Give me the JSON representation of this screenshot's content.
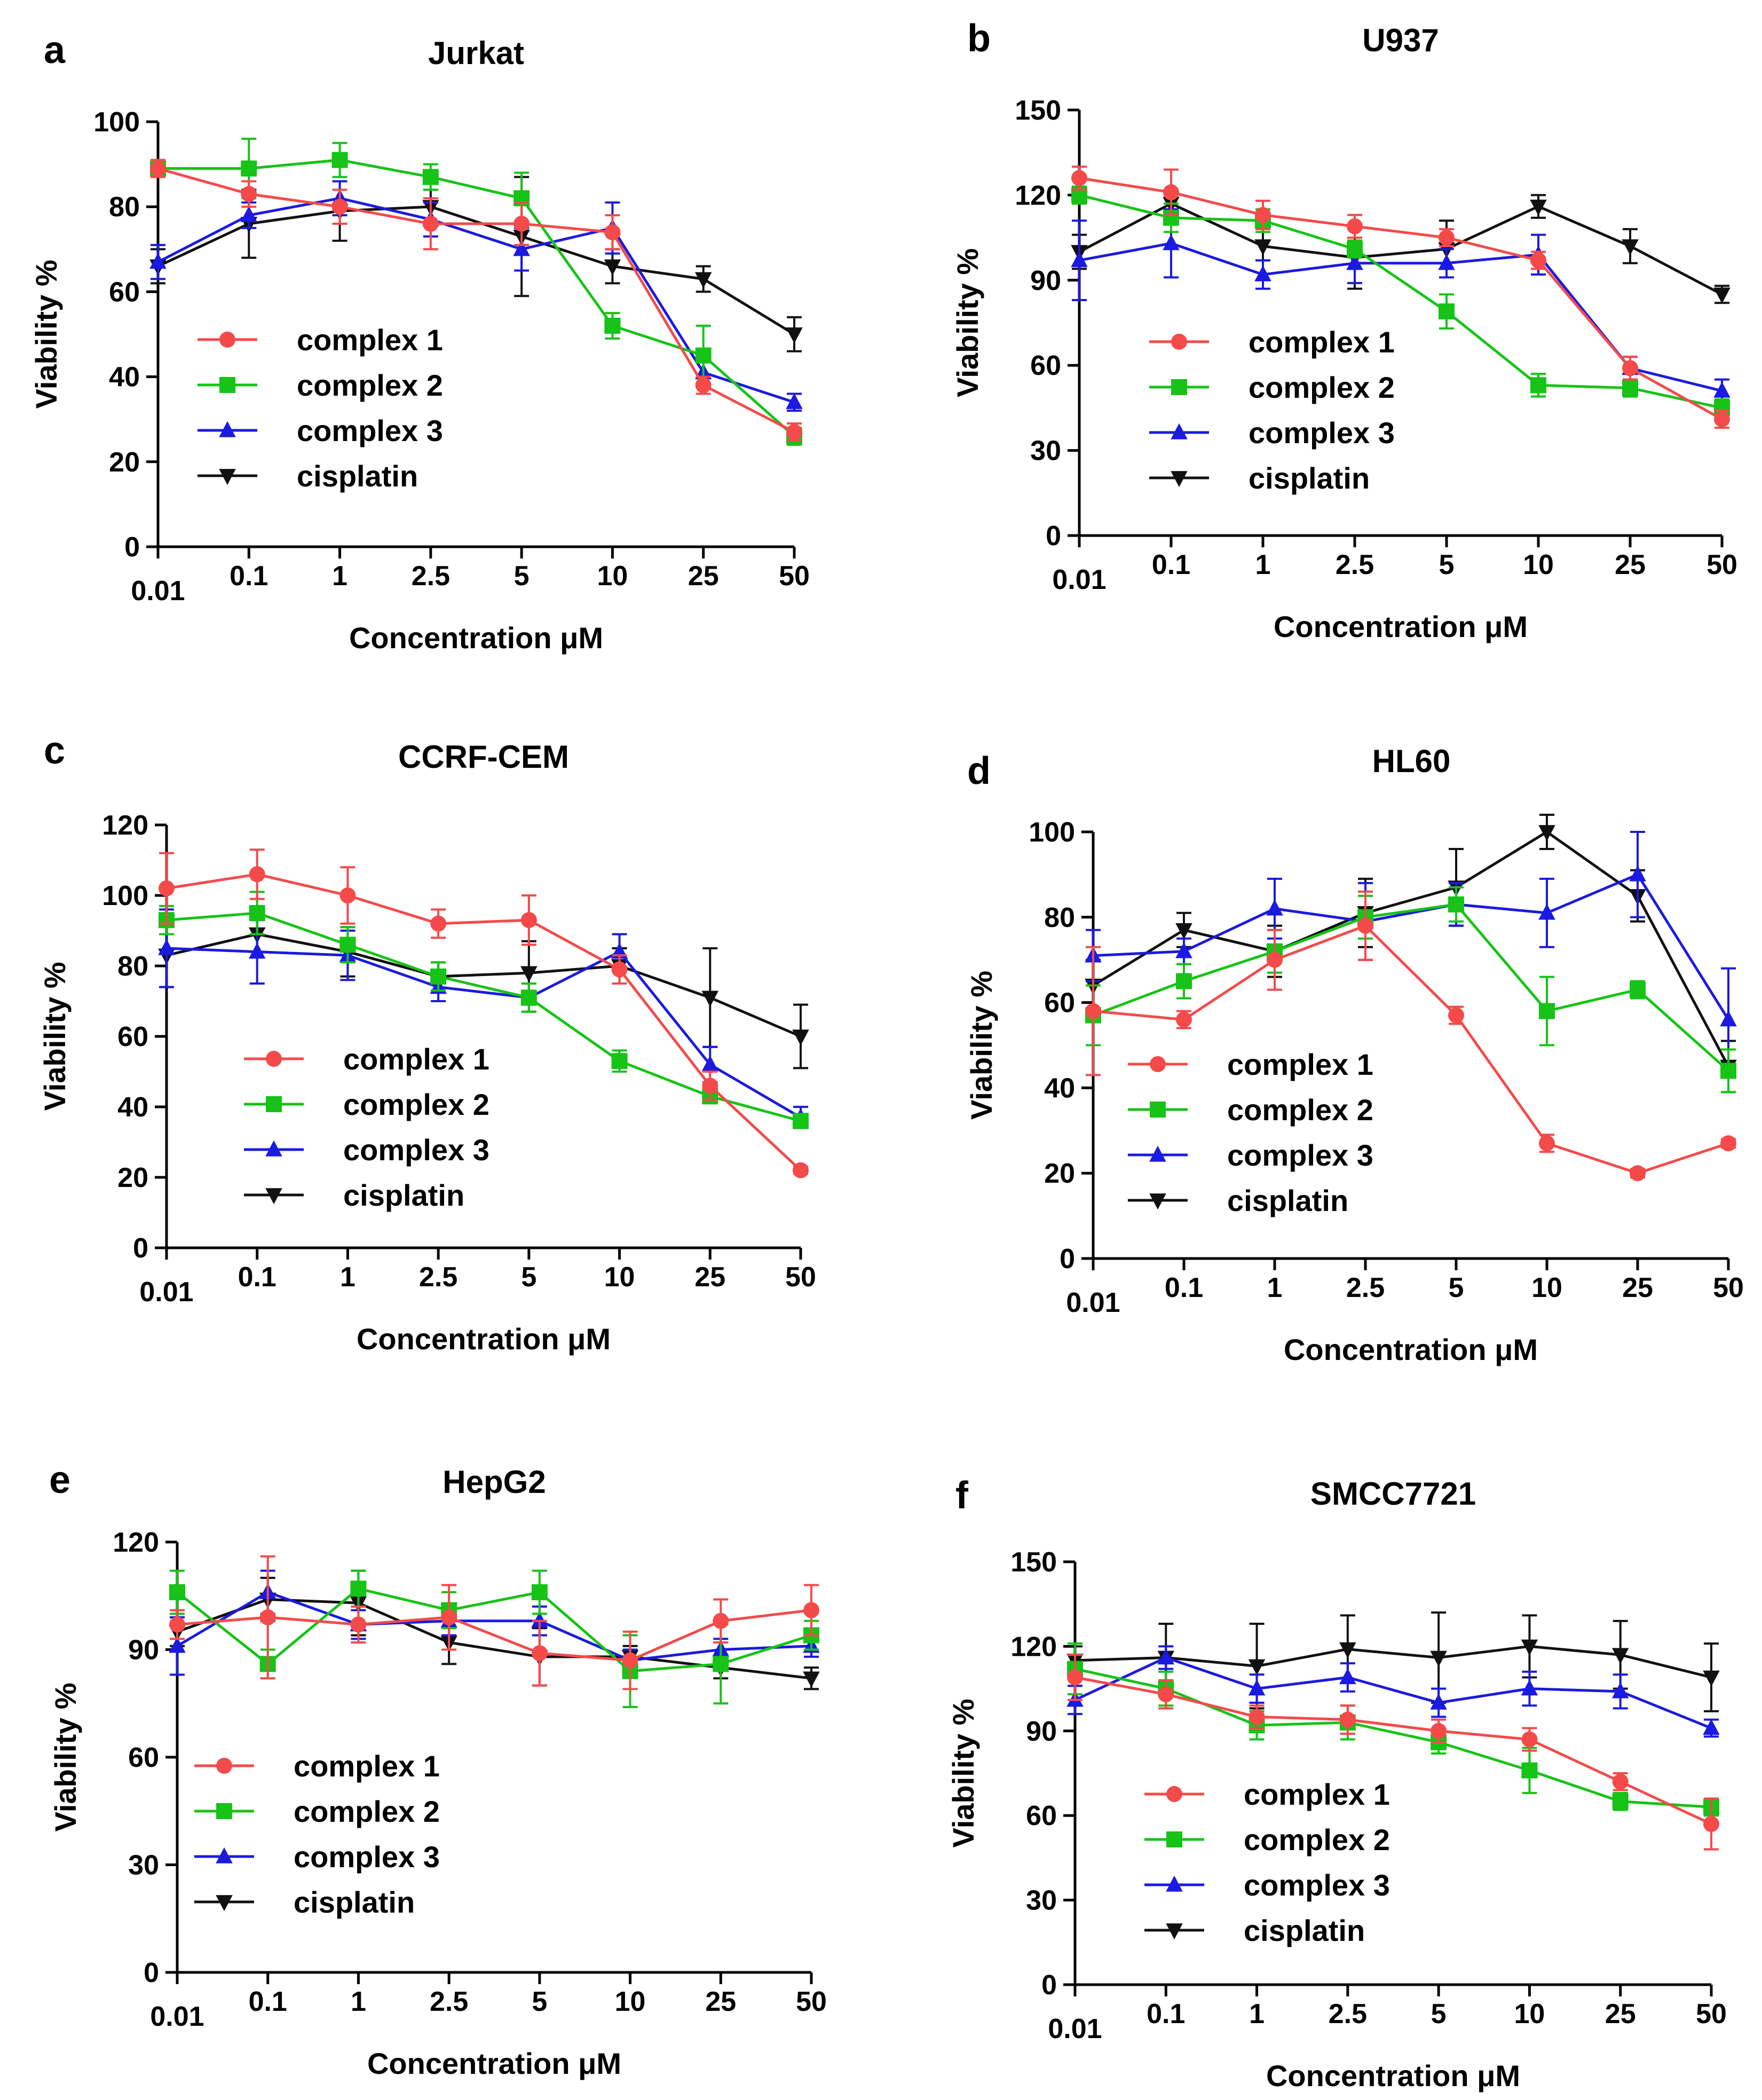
{
  "figure": {
    "x_categories": [
      "0.01",
      "0.1",
      "1",
      "2.5",
      "5",
      "10",
      "25",
      "50"
    ],
    "series_style": [
      {
        "name": "complex 1",
        "color": "#f44a4a",
        "marker": "circle"
      },
      {
        "name": "complex 2",
        "color": "#16c316",
        "marker": "square"
      },
      {
        "name": "complex 3",
        "color": "#1a1ae0",
        "marker": "triangle-up"
      },
      {
        "name": "cisplatin",
        "color": "#111111",
        "marker": "triangle-down"
      }
    ]
  },
  "chart_data": [
    {
      "panel": "a",
      "title": "Jurkat",
      "type": "line",
      "xlabel": "Concentration μM",
      "ylabel": "Viability %",
      "categories": [
        "0.01",
        "0.1",
        "1",
        "2.5",
        "5",
        "10",
        "25",
        "50"
      ],
      "ylim": [
        0,
        100
      ],
      "yticks": [
        0,
        20,
        40,
        60,
        80,
        100
      ],
      "legend": [
        "complex 1",
        "complex 2",
        "complex 3",
        "cisplatin"
      ],
      "series": [
        {
          "name": "complex 1",
          "values": [
            89,
            83,
            80,
            76,
            76,
            74,
            38,
            27
          ],
          "errors": [
            2,
            3,
            4,
            6,
            5,
            4,
            2,
            2
          ]
        },
        {
          "name": "complex 2",
          "values": [
            89,
            89,
            91,
            87,
            82,
            52,
            45,
            26
          ],
          "errors": [
            2,
            7,
            4,
            3,
            6,
            3,
            7,
            2
          ]
        },
        {
          "name": "complex 3",
          "values": [
            67,
            78,
            82,
            77,
            70,
            75,
            41,
            34
          ],
          "errors": [
            4,
            3,
            4,
            4,
            5,
            6,
            3,
            2
          ]
        },
        {
          "name": "cisplatin",
          "values": [
            66,
            76,
            79,
            80,
            73,
            66,
            63,
            50
          ],
          "errors": [
            4,
            8,
            7,
            4,
            14,
            4,
            3,
            4
          ]
        }
      ]
    },
    {
      "panel": "b",
      "title": "U937",
      "type": "line",
      "xlabel": "Concentration μM",
      "ylabel": "Viability %",
      "categories": [
        "0.01",
        "0.1",
        "1",
        "2.5",
        "5",
        "10",
        "25",
        "50"
      ],
      "ylim": [
        0,
        150
      ],
      "yticks": [
        0,
        30,
        60,
        90,
        120,
        150
      ],
      "legend": [
        "complex 1",
        "complex 2",
        "complex 3",
        "cisplatin"
      ],
      "series": [
        {
          "name": "complex 1",
          "values": [
            126,
            121,
            113,
            109,
            105,
            97,
            59,
            41
          ],
          "errors": [
            4,
            8,
            5,
            4,
            3,
            3,
            4,
            3
          ]
        },
        {
          "name": "complex 2",
          "values": [
            120,
            112,
            111,
            101,
            79,
            53,
            52,
            45
          ],
          "errors": [
            3,
            5,
            4,
            3,
            6,
            4,
            3,
            3
          ]
        },
        {
          "name": "complex 3",
          "values": [
            97,
            103,
            92,
            96,
            96,
            99,
            59,
            51
          ],
          "errors": [
            14,
            12,
            5,
            7,
            5,
            7,
            4,
            4
          ]
        },
        {
          "name": "cisplatin",
          "values": [
            100,
            117,
            102,
            98,
            101,
            116,
            102,
            85
          ],
          "errors": [
            6,
            4,
            5,
            11,
            10,
            4,
            6,
            3
          ]
        }
      ]
    },
    {
      "panel": "c",
      "title": "CCRF-CEM",
      "type": "line",
      "xlabel": "Concentration μM",
      "ylabel": "Viability %",
      "categories": [
        "0.01",
        "0.1",
        "1",
        "2.5",
        "5",
        "10",
        "25",
        "50"
      ],
      "ylim": [
        0,
        120
      ],
      "yticks": [
        0,
        20,
        40,
        60,
        80,
        100,
        120
      ],
      "legend": [
        "complex 1",
        "complex 2",
        "complex 3",
        "cisplatin"
      ],
      "series": [
        {
          "name": "complex 1",
          "values": [
            102,
            106,
            100,
            92,
            93,
            79,
            46,
            22
          ],
          "errors": [
            10,
            7,
            8,
            4,
            7,
            4,
            4,
            1
          ]
        },
        {
          "name": "complex 2",
          "values": [
            93,
            95,
            86,
            77,
            71,
            53,
            43,
            36
          ],
          "errors": [
            4,
            6,
            5,
            4,
            4,
            3,
            2,
            2
          ]
        },
        {
          "name": "complex 3",
          "values": [
            85,
            84,
            83,
            74,
            71,
            84,
            52,
            37
          ],
          "errors": [
            11,
            9,
            7,
            4,
            4,
            5,
            5,
            3
          ]
        },
        {
          "name": "cisplatin",
          "values": [
            83,
            89,
            84,
            77,
            78,
            80,
            71,
            60
          ],
          "errors": [
            9,
            5,
            7,
            4,
            9,
            5,
            14,
            9
          ]
        }
      ]
    },
    {
      "panel": "d",
      "title": "HL60",
      "type": "line",
      "xlabel": "Concentration μM",
      "ylabel": "Viability %",
      "categories": [
        "0.01",
        "0.1",
        "1",
        "2.5",
        "5",
        "10",
        "25",
        "50"
      ],
      "ylim": [
        0,
        100
      ],
      "yticks": [
        0,
        20,
        40,
        60,
        80,
        100
      ],
      "legend": [
        "complex 1",
        "complex 2",
        "complex 3",
        "cisplatin"
      ],
      "series": [
        {
          "name": "complex 1",
          "values": [
            58,
            56,
            70,
            78,
            57,
            27,
            20,
            27
          ],
          "errors": [
            15,
            2,
            7,
            8,
            2,
            2,
            1,
            1
          ]
        },
        {
          "name": "complex 2",
          "values": [
            57,
            65,
            72,
            80,
            83,
            58,
            63,
            44
          ],
          "errors": [
            7,
            4,
            5,
            5,
            4,
            8,
            2,
            5
          ]
        },
        {
          "name": "complex 3",
          "values": [
            71,
            72,
            82,
            79,
            83,
            81,
            90,
            56
          ],
          "errors": [
            6,
            3,
            7,
            9,
            5,
            8,
            10,
            12
          ]
        },
        {
          "name": "cisplatin",
          "values": [
            64,
            77,
            72,
            81,
            87,
            100,
            85,
            45
          ],
          "errors": [
            6,
            4,
            6,
            8,
            9,
            4,
            6,
            6
          ]
        }
      ]
    },
    {
      "panel": "e",
      "title": "HepG2",
      "type": "line",
      "xlabel": "Concentration μM",
      "ylabel": "Viability %",
      "categories": [
        "0.01",
        "0.1",
        "1",
        "2.5",
        "5",
        "10",
        "25",
        "50"
      ],
      "ylim": [
        0,
        120
      ],
      "yticks": [
        0,
        30,
        60,
        90,
        120
      ],
      "legend": [
        "complex 1",
        "complex 2",
        "complex 3",
        "cisplatin"
      ],
      "series": [
        {
          "name": "complex 1",
          "values": [
            97,
            99,
            97,
            99,
            89,
            87,
            98,
            101
          ],
          "errors": [
            4,
            17,
            5,
            9,
            9,
            8,
            6,
            7
          ]
        },
        {
          "name": "complex 2",
          "values": [
            106,
            86,
            107,
            101,
            106,
            84,
            86,
            94
          ],
          "errors": [
            6,
            4,
            5,
            5,
            6,
            10,
            11,
            4
          ]
        },
        {
          "name": "complex 3",
          "values": [
            91,
            106,
            97,
            98,
            98,
            87,
            90,
            91
          ],
          "errors": [
            8,
            6,
            4,
            4,
            4,
            3,
            3,
            3
          ]
        },
        {
          "name": "cisplatin",
          "values": [
            95,
            104,
            103,
            92,
            88,
            88,
            85,
            82
          ],
          "errors": [
            4,
            6,
            9,
            6,
            8,
            3,
            3,
            3
          ]
        }
      ]
    },
    {
      "panel": "f",
      "title": "SMCC7721",
      "type": "line",
      "xlabel": "Concentration μM",
      "ylabel": "Viability %",
      "categories": [
        "0.01",
        "0.1",
        "1",
        "2.5",
        "5",
        "10",
        "25",
        "50"
      ],
      "ylim": [
        0,
        150
      ],
      "yticks": [
        0,
        30,
        60,
        90,
        120,
        150
      ],
      "legend": [
        "complex 1",
        "complex 2",
        "complex 3",
        "cisplatin"
      ],
      "series": [
        {
          "name": "complex 1",
          "values": [
            109,
            103,
            95,
            94,
            90,
            87,
            72,
            57
          ],
          "errors": [
            8,
            5,
            4,
            5,
            4,
            4,
            3,
            9
          ]
        },
        {
          "name": "complex 2",
          "values": [
            112,
            105,
            92,
            93,
            86,
            76,
            65,
            63
          ],
          "errors": [
            9,
            6,
            5,
            6,
            4,
            8,
            3,
            3
          ]
        },
        {
          "name": "complex 3",
          "values": [
            101,
            116,
            105,
            109,
            100,
            105,
            104,
            91
          ],
          "errors": [
            5,
            4,
            5,
            5,
            5,
            6,
            6,
            3
          ]
        },
        {
          "name": "cisplatin",
          "values": [
            115,
            116,
            113,
            119,
            116,
            120,
            117,
            109
          ],
          "errors": [
            5,
            12,
            15,
            12,
            16,
            11,
            12,
            12
          ]
        }
      ]
    }
  ]
}
